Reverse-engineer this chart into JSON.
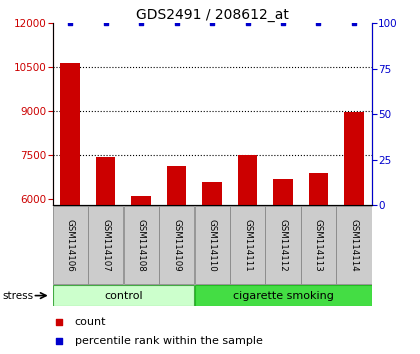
{
  "title": "GDS2491 / 208612_at",
  "samples": [
    "GSM114106",
    "GSM114107",
    "GSM114108",
    "GSM114109",
    "GSM114110",
    "GSM114111",
    "GSM114112",
    "GSM114113",
    "GSM114114"
  ],
  "counts": [
    10650,
    7430,
    6100,
    7150,
    6600,
    7520,
    6700,
    6900,
    8980
  ],
  "percentile_ranks": [
    100,
    100,
    100,
    100,
    100,
    100,
    100,
    100,
    100
  ],
  "ylim_left": [
    5800,
    12000
  ],
  "ylim_right": [
    0,
    100
  ],
  "yticks_left": [
    6000,
    7500,
    9000,
    10500,
    12000
  ],
  "yticks_right": [
    0,
    25,
    50,
    75,
    100
  ],
  "bar_color": "#cc0000",
  "dot_color": "#0000cc",
  "n_control": 4,
  "n_smoking": 5,
  "control_label": "control",
  "smoking_label": "cigarette smoking",
  "stress_label": "stress",
  "legend_count_label": "count",
  "legend_pct_label": "percentile rank within the sample",
  "control_color_light": "#ccffcc",
  "smoking_color": "#44dd44",
  "label_color_left": "#cc0000",
  "label_color_right": "#0000cc",
  "bar_width": 0.55,
  "sample_box_color": "#cccccc",
  "grid_linestyle": "dotted"
}
